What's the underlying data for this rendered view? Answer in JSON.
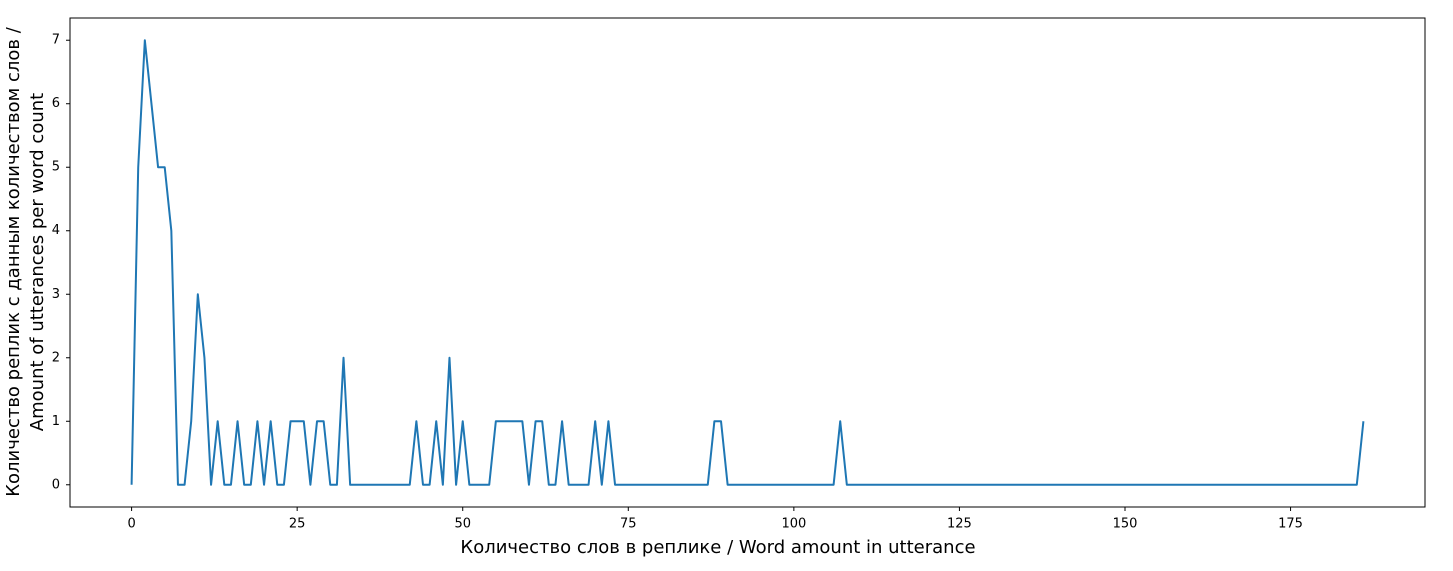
{
  "chart_data": {
    "type": "line",
    "xlabel": "Количество слов в реплике / Word amount in utterance",
    "ylabel": [
      "Количество реплик с данным количеством слов /",
      "Amount of utterances per word count"
    ],
    "x": [
      0,
      1,
      2,
      3,
      4,
      5,
      6,
      7,
      8,
      9,
      10,
      11,
      12,
      13,
      14,
      15,
      16,
      17,
      18,
      19,
      20,
      21,
      22,
      23,
      24,
      25,
      26,
      27,
      28,
      29,
      30,
      31,
      32,
      33,
      34,
      35,
      36,
      37,
      38,
      39,
      40,
      41,
      42,
      43,
      44,
      45,
      46,
      47,
      48,
      49,
      50,
      51,
      52,
      53,
      54,
      55,
      56,
      57,
      58,
      59,
      60,
      61,
      62,
      63,
      64,
      65,
      66,
      67,
      68,
      69,
      70,
      71,
      72,
      73,
      74,
      75,
      76,
      77,
      78,
      79,
      80,
      81,
      82,
      83,
      84,
      85,
      86,
      87,
      88,
      89,
      90,
      91,
      92,
      93,
      94,
      95,
      96,
      97,
      98,
      99,
      100,
      101,
      102,
      103,
      104,
      105,
      106,
      107,
      108,
      109,
      110,
      111,
      112,
      113,
      114,
      115,
      116,
      117,
      118,
      119,
      120,
      121,
      122,
      123,
      124,
      125,
      126,
      127,
      128,
      129,
      130,
      131,
      132,
      133,
      134,
      135,
      136,
      137,
      138,
      139,
      140,
      141,
      142,
      143,
      144,
      145,
      146,
      147,
      148,
      149,
      150,
      151,
      152,
      153,
      154,
      155,
      156,
      157,
      158,
      159,
      160,
      161,
      162,
      163,
      164,
      165,
      166,
      167,
      168,
      169,
      170,
      171,
      172,
      173,
      174,
      175,
      176,
      177,
      178,
      179,
      180,
      181,
      182,
      183,
      184,
      185,
      186
    ],
    "series": [
      {
        "color": "#1f77b4",
        "values": [
          0,
          5,
          7,
          6,
          5,
          5,
          4,
          0,
          0,
          1,
          3,
          2,
          0,
          1,
          0,
          0,
          1,
          0,
          0,
          1,
          0,
          1,
          0,
          0,
          1,
          1,
          1,
          0,
          1,
          1,
          0,
          0,
          2,
          0,
          0,
          0,
          0,
          0,
          0,
          0,
          0,
          0,
          0,
          1,
          0,
          0,
          1,
          0,
          2,
          0,
          1,
          0,
          0,
          0,
          0,
          1,
          1,
          1,
          1,
          1,
          0,
          1,
          1,
          0,
          0,
          1,
          0,
          0,
          0,
          0,
          1,
          0,
          1,
          0,
          0,
          0,
          0,
          0,
          0,
          0,
          0,
          0,
          0,
          0,
          0,
          0,
          0,
          0,
          1,
          1,
          0,
          0,
          0,
          0,
          0,
          0,
          0,
          0,
          0,
          0,
          0,
          0,
          0,
          0,
          0,
          0,
          0,
          1,
          0,
          0,
          0,
          0,
          0,
          0,
          0,
          0,
          0,
          0,
          0,
          0,
          0,
          0,
          0,
          0,
          0,
          0,
          0,
          0,
          0,
          0,
          0,
          0,
          0,
          0,
          0,
          0,
          0,
          0,
          0,
          0,
          0,
          0,
          0,
          0,
          0,
          0,
          0,
          0,
          0,
          0,
          0,
          0,
          0,
          0,
          0,
          0,
          0,
          0,
          0,
          0,
          0,
          0,
          0,
          0,
          0,
          0,
          0,
          0,
          0,
          0,
          0,
          0,
          0,
          0,
          0,
          0,
          0,
          0,
          0,
          0,
          0,
          0,
          0,
          0,
          0,
          0,
          1
        ]
      }
    ],
    "xlim": [
      -9.3,
      195.3
    ],
    "xticks": [
      0,
      25,
      50,
      75,
      100,
      125,
      150,
      175
    ],
    "ylim": [
      -0.35,
      7.35
    ],
    "yticks": [
      0,
      1,
      2,
      3,
      4,
      5,
      6,
      7
    ]
  }
}
